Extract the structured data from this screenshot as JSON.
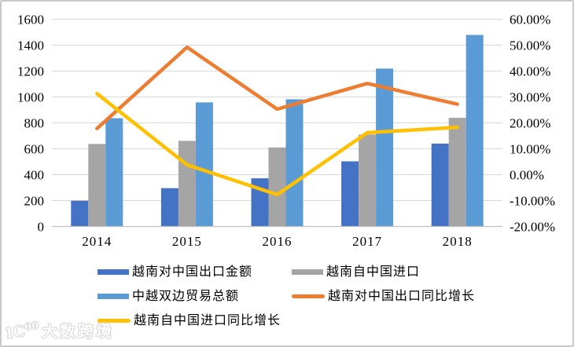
{
  "watermark": {
    "logo_text": "1C⁰⁰",
    "brand": "大数跨境"
  },
  "colors": {
    "gridline": "#d9d9d9",
    "axis_line": "#bfbfbf",
    "tick_text": "#000000",
    "frame_border": "#c9c9c9",
    "watermark_outline": "#d2d2d2"
  },
  "chart_data": {
    "type": "bar",
    "subtype": "combo-bar-line",
    "title": "",
    "xlabel": "",
    "ylabel": "",
    "grid": true,
    "legend_position": "bottom",
    "categories": [
      "2014",
      "2015",
      "2016",
      "2017",
      "2018"
    ],
    "left_axis": {
      "min": 0,
      "max": 1600,
      "step": 200,
      "ticks": [
        "0",
        "200",
        "400",
        "600",
        "800",
        "1000",
        "1200",
        "1400",
        "1600"
      ]
    },
    "right_axis": {
      "min": -20,
      "max": 60,
      "step": 10,
      "ticks": [
        "-20.00%",
        "-10.00%",
        "0.00%",
        "10.00%",
        "20.00%",
        "30.00%",
        "40.00%",
        "50.00%",
        "60.00%"
      ]
    },
    "series": [
      {
        "name": "越南对中国出口金额",
        "type": "bar",
        "axis": "left",
        "color": "#4472c4",
        "values": [
          199,
          296,
          372,
          503,
          640
        ]
      },
      {
        "name": "越南自中国进口",
        "type": "bar",
        "axis": "left",
        "color": "#a5a5a5",
        "values": [
          637,
          661,
          610,
          710,
          839
        ]
      },
      {
        "name": "中越双边贸易总额",
        "type": "bar",
        "axis": "left",
        "color": "#5b9bd5",
        "values": [
          836,
          958,
          982,
          1219,
          1479
        ]
      },
      {
        "name": "越南对中国出口同比增长",
        "type": "line",
        "axis": "right",
        "color": "#ed7d31",
        "values": [
          17.8,
          49.2,
          25.3,
          35.2,
          27.2
        ]
      },
      {
        "name": "越南自中国进口同比增长",
        "type": "line",
        "axis": "right",
        "color": "#ffc000",
        "values": [
          31.3,
          3.8,
          -7.7,
          16.2,
          18.3
        ]
      }
    ]
  }
}
